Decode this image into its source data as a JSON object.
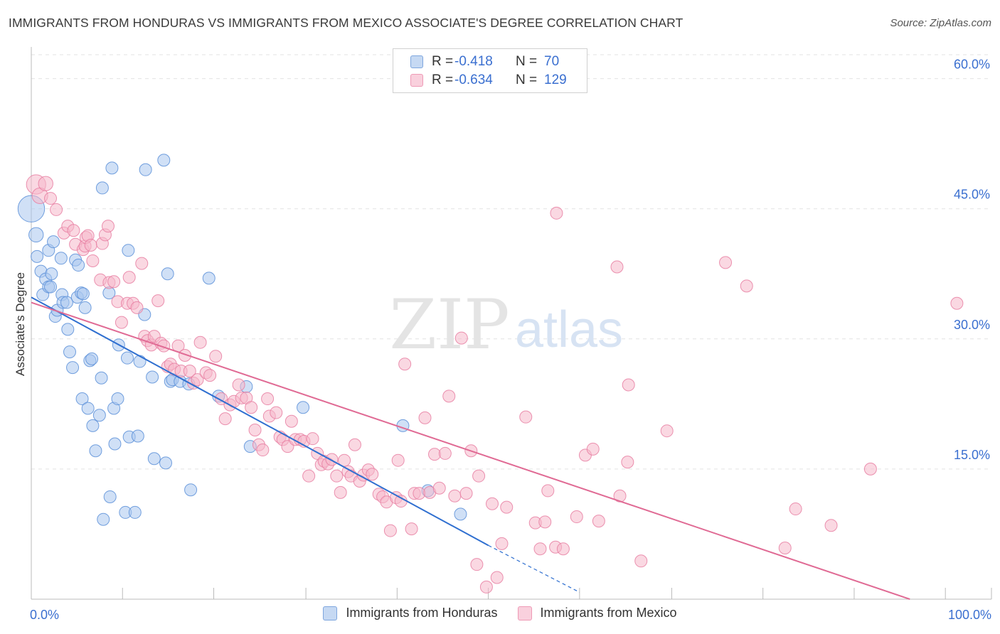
{
  "header": {
    "title": "IMMIGRANTS FROM HONDURAS VS IMMIGRANTS FROM MEXICO ASSOCIATE'S DEGREE CORRELATION CHART",
    "source": "Source: ZipAtlas.com"
  },
  "legend": {
    "r_label": "R =",
    "n_label": "N =",
    "honduras": {
      "r": "-0.418",
      "n": "70"
    },
    "mexico": {
      "r": "-0.634",
      "n": "129"
    }
  },
  "watermark": {
    "zip": "ZIP",
    "atlas": "atlas"
  },
  "colors": {
    "honduras_fill": "#a9c7ee",
    "honduras_stroke": "#5b8fd8",
    "honduras_line": "#2f6fd0",
    "mexico_fill": "#f5b8cb",
    "mexico_stroke": "#e77fa2",
    "mexico_line": "#e06a94",
    "tick_text": "#3a6fd0",
    "grid": "#e3e3e3"
  },
  "chart_data": {
    "type": "scatter",
    "title": "IMMIGRANTS FROM HONDURAS VS IMMIGRANTS FROM MEXICO ASSOCIATE'S DEGREE CORRELATION CHART",
    "xlabel": "",
    "ylabel": "Associate's Degree",
    "xlim": [
      0,
      100
    ],
    "ylim": [
      0,
      63
    ],
    "x_ticks": [
      0,
      9.5,
      19,
      28.6,
      38.1,
      47.6,
      57.1,
      66.7,
      76.2,
      85.7,
      95.2,
      100
    ],
    "x_tick_labels": [
      {
        "value": 0,
        "label": "0.0%"
      },
      {
        "value": 100,
        "label": "100.0%"
      }
    ],
    "y_tick_labels": [
      {
        "value": 15,
        "label": "15.0%"
      },
      {
        "value": 30,
        "label": "30.0%"
      },
      {
        "value": 45,
        "label": "45.0%"
      },
      {
        "value": 60,
        "label": "60.0%"
      }
    ],
    "grid": true,
    "series": [
      {
        "name": "Immigrants from Honduras",
        "r": -0.418,
        "n": 70,
        "trend": {
          "x0": 0,
          "y0": 34.8,
          "x1": 47.6,
          "y1": 6.2,
          "dashed_to_x": 57.1,
          "dashed_to_y": 0.8
        },
        "points": [
          [
            0,
            45,
            2.2
          ],
          [
            0.5,
            42,
            1.2
          ],
          [
            0.6,
            39.5,
            1
          ],
          [
            1,
            37.8,
            1
          ],
          [
            1.2,
            35.1,
            1
          ],
          [
            1.5,
            36.9,
            1
          ],
          [
            1.8,
            40.2,
            1
          ],
          [
            1.8,
            36,
            1
          ],
          [
            2,
            36,
            1
          ],
          [
            2.1,
            37.5,
            1
          ],
          [
            2.3,
            41.2,
            1
          ],
          [
            2.5,
            32.6,
            1
          ],
          [
            2.7,
            33.3,
            1
          ],
          [
            3.1,
            39.3,
            1
          ],
          [
            3.2,
            35.1,
            1
          ],
          [
            3.3,
            34.2,
            1
          ],
          [
            3.7,
            34.2,
            1
          ],
          [
            3.8,
            31.1,
            1
          ],
          [
            4,
            28.5,
            1
          ],
          [
            4.3,
            26.7,
            1
          ],
          [
            4.6,
            39.1,
            1
          ],
          [
            4.8,
            34.8,
            1
          ],
          [
            4.9,
            38.5,
            1
          ],
          [
            5.2,
            35.3,
            1
          ],
          [
            5.4,
            35.2,
            1
          ],
          [
            5.6,
            33.6,
            1
          ],
          [
            5.3,
            23.1,
            1
          ],
          [
            5.9,
            22,
            1
          ],
          [
            6.1,
            27.5,
            1
          ],
          [
            6.3,
            27.7,
            1
          ],
          [
            6.4,
            20,
            1
          ],
          [
            6.7,
            17.1,
            1
          ],
          [
            7.1,
            21.2,
            1
          ],
          [
            7.3,
            25.5,
            1
          ],
          [
            7.4,
            47.4,
            1
          ],
          [
            7.5,
            9.2,
            1
          ],
          [
            8.1,
            35.3,
            1
          ],
          [
            8.2,
            11.8,
            1
          ],
          [
            8.4,
            49.7,
            1
          ],
          [
            8.6,
            22,
            1
          ],
          [
            8.7,
            17.9,
            1
          ],
          [
            9,
            23.1,
            1
          ],
          [
            9.1,
            29.3,
            1
          ],
          [
            9.8,
            10,
            1
          ],
          [
            10,
            27.8,
            1
          ],
          [
            10.1,
            40.2,
            1
          ],
          [
            10.2,
            18.7,
            1
          ],
          [
            10.8,
            10,
            1
          ],
          [
            11.1,
            18.8,
            1
          ],
          [
            11.3,
            27.4,
            1
          ],
          [
            11.8,
            32.8,
            1
          ],
          [
            11.9,
            49.5,
            1
          ],
          [
            12.6,
            25.6,
            1
          ],
          [
            12.8,
            16.2,
            1
          ],
          [
            13.8,
            50.6,
            1
          ],
          [
            14,
            15.7,
            1
          ],
          [
            14.2,
            37.5,
            1
          ],
          [
            14.5,
            25.1,
            1
          ],
          [
            14.7,
            25.3,
            1
          ],
          [
            15.5,
            25.1,
            1
          ],
          [
            16.4,
            24.8,
            1
          ],
          [
            16.6,
            12.6,
            1
          ],
          [
            18.5,
            37,
            1
          ],
          [
            19.5,
            23.4,
            1
          ],
          [
            22.4,
            24.5,
            1
          ],
          [
            22.8,
            17.6,
            1
          ],
          [
            28.3,
            22.1,
            1
          ],
          [
            38.7,
            20,
            1
          ],
          [
            41.3,
            12.5,
            1
          ],
          [
            44.7,
            9.8,
            1
          ]
        ]
      },
      {
        "name": "Immigrants from Mexico",
        "r": -0.634,
        "n": 129,
        "trend": {
          "x0": 0,
          "y0": 34.2,
          "x1": 91.5,
          "y1": 0
        },
        "points": [
          [
            0.5,
            47.8,
            1.6
          ],
          [
            0.9,
            46.5,
            1.3
          ],
          [
            1.5,
            47.9,
            1.2
          ],
          [
            2,
            46.2,
            1
          ],
          [
            2.6,
            44.9,
            1
          ],
          [
            3.4,
            42.2,
            1
          ],
          [
            3.8,
            43,
            1
          ],
          [
            4.4,
            42.5,
            1
          ],
          [
            4.6,
            40.9,
            1
          ],
          [
            5.4,
            40.3,
            1
          ],
          [
            5.6,
            40.7,
            1
          ],
          [
            5.7,
            41.7,
            1
          ],
          [
            5.9,
            41.9,
            1
          ],
          [
            6.2,
            40.8,
            1
          ],
          [
            6.4,
            39,
            1
          ],
          [
            7.2,
            36.8,
            1
          ],
          [
            7.4,
            41,
            1
          ],
          [
            7.7,
            42,
            1
          ],
          [
            8,
            43,
            1
          ],
          [
            8.1,
            36.5,
            1
          ],
          [
            8.6,
            36.6,
            1
          ],
          [
            9,
            34.3,
            1
          ],
          [
            9.4,
            31.9,
            1
          ],
          [
            10,
            34.1,
            1
          ],
          [
            10.2,
            37.1,
            1
          ],
          [
            10.6,
            34.1,
            1
          ],
          [
            11,
            33.6,
            1
          ],
          [
            11.5,
            38.7,
            1
          ],
          [
            11.8,
            30.3,
            1
          ],
          [
            12.1,
            29.8,
            1
          ],
          [
            12.5,
            29.3,
            1
          ],
          [
            12.8,
            30.3,
            1
          ],
          [
            13.2,
            34.4,
            1
          ],
          [
            13.5,
            29.5,
            1
          ],
          [
            13.8,
            29.2,
            1
          ],
          [
            14.2,
            26.8,
            1
          ],
          [
            14.5,
            27.1,
            1
          ],
          [
            14.9,
            26.5,
            1
          ],
          [
            15.3,
            29.2,
            1
          ],
          [
            15.6,
            26.3,
            1
          ],
          [
            16,
            28.1,
            1
          ],
          [
            16.5,
            26.3,
            1
          ],
          [
            16.9,
            24.9,
            1
          ],
          [
            17.3,
            25.3,
            1
          ],
          [
            17.6,
            29.6,
            1
          ],
          [
            18.2,
            26.1,
            1
          ],
          [
            18.6,
            25.8,
            1
          ],
          [
            19.2,
            28,
            1
          ],
          [
            19.8,
            23.1,
            1
          ],
          [
            20.2,
            20.8,
            1
          ],
          [
            20.7,
            22.4,
            1
          ],
          [
            21.1,
            22.8,
            1
          ],
          [
            21.6,
            24.7,
            1
          ],
          [
            21.9,
            23.2,
            1
          ],
          [
            22.4,
            23.2,
            1
          ],
          [
            22.9,
            22.1,
            1
          ],
          [
            23.3,
            19.5,
            1
          ],
          [
            23.7,
            17.8,
            1
          ],
          [
            24.1,
            17.2,
            1
          ],
          [
            24.6,
            23.1,
            1
          ],
          [
            24.8,
            21.1,
            1
          ],
          [
            25.5,
            21.5,
            1
          ],
          [
            25.9,
            18.7,
            1
          ],
          [
            26.2,
            18.4,
            1
          ],
          [
            26.7,
            17.6,
            1
          ],
          [
            27.1,
            20.5,
            1
          ],
          [
            27.5,
            18.4,
            1
          ],
          [
            28,
            18.4,
            1
          ],
          [
            28.4,
            18.2,
            1
          ],
          [
            28.9,
            14.2,
            1
          ],
          [
            29.3,
            18.5,
            1
          ],
          [
            29.8,
            16.8,
            1
          ],
          [
            30.2,
            15.5,
            1
          ],
          [
            30.5,
            15.9,
            1
          ],
          [
            30.9,
            15.6,
            1
          ],
          [
            31.3,
            16.1,
            1
          ],
          [
            31.8,
            14.2,
            1
          ],
          [
            32.2,
            12.3,
            1
          ],
          [
            32.6,
            16,
            1
          ],
          [
            33,
            14.7,
            1
          ],
          [
            33.3,
            14.2,
            1
          ],
          [
            33.7,
            17.8,
            1
          ],
          [
            34.2,
            13.6,
            1
          ],
          [
            34.6,
            14.3,
            1
          ],
          [
            35.1,
            14.9,
            1
          ],
          [
            35.5,
            14.4,
            1
          ],
          [
            36.2,
            12.1,
            1
          ],
          [
            36.6,
            11.8,
            1
          ],
          [
            37,
            11.2,
            1
          ],
          [
            37.4,
            7.9,
            1
          ],
          [
            38,
            11.7,
            1
          ],
          [
            38.2,
            16,
            1
          ],
          [
            38.5,
            11.3,
            1
          ],
          [
            38.9,
            27.1,
            1
          ],
          [
            39.6,
            8.1,
            1
          ],
          [
            39.9,
            12.2,
            1
          ],
          [
            40.4,
            12.2,
            1
          ],
          [
            41,
            20.9,
            1
          ],
          [
            41.5,
            12.3,
            1
          ],
          [
            42,
            16.7,
            1
          ],
          [
            42.5,
            12.8,
            1
          ],
          [
            43.1,
            16.8,
            1
          ],
          [
            43.5,
            23.4,
            1
          ],
          [
            44.1,
            11.9,
            1
          ],
          [
            44.8,
            30.1,
            1
          ],
          [
            45.3,
            12.2,
            1
          ],
          [
            45.8,
            17.1,
            1
          ],
          [
            46.4,
            4,
            1
          ],
          [
            46.6,
            14.2,
            1
          ],
          [
            47.4,
            1.4,
            1
          ],
          [
            48,
            11,
            1
          ],
          [
            48.5,
            2.5,
            1
          ],
          [
            49,
            6.4,
            1
          ],
          [
            49.5,
            10.6,
            1
          ],
          [
            51.5,
            21,
            1
          ],
          [
            52.5,
            8.8,
            1
          ],
          [
            53,
            5.8,
            1
          ],
          [
            53.5,
            8.9,
            1
          ],
          [
            53.8,
            12.5,
            1
          ],
          [
            54.6,
            6,
            1
          ],
          [
            54.7,
            44.5,
            1
          ],
          [
            55.4,
            5.8,
            1
          ],
          [
            56.8,
            9.5,
            1
          ],
          [
            57.7,
            16.6,
            1
          ],
          [
            58.5,
            17.3,
            1
          ],
          [
            59.1,
            9,
            1
          ],
          [
            61,
            38.3,
            1
          ],
          [
            61.3,
            11.9,
            1
          ],
          [
            62.1,
            15.8,
            1
          ],
          [
            62.2,
            24.7,
            1
          ],
          [
            63.5,
            4.4,
            1
          ],
          [
            66.2,
            19.4,
            1
          ],
          [
            72.3,
            38.8,
            1
          ],
          [
            74.5,
            36.1,
            1
          ],
          [
            78.5,
            5.9,
            1
          ],
          [
            79.6,
            10.4,
            1
          ],
          [
            83.3,
            8.5,
            1
          ],
          [
            87.4,
            15,
            1
          ],
          [
            96.4,
            34.1,
            1
          ]
        ]
      }
    ]
  },
  "bottom_legend": {
    "honduras_label": "Immigrants from Honduras",
    "mexico_label": "Immigrants from Mexico"
  }
}
